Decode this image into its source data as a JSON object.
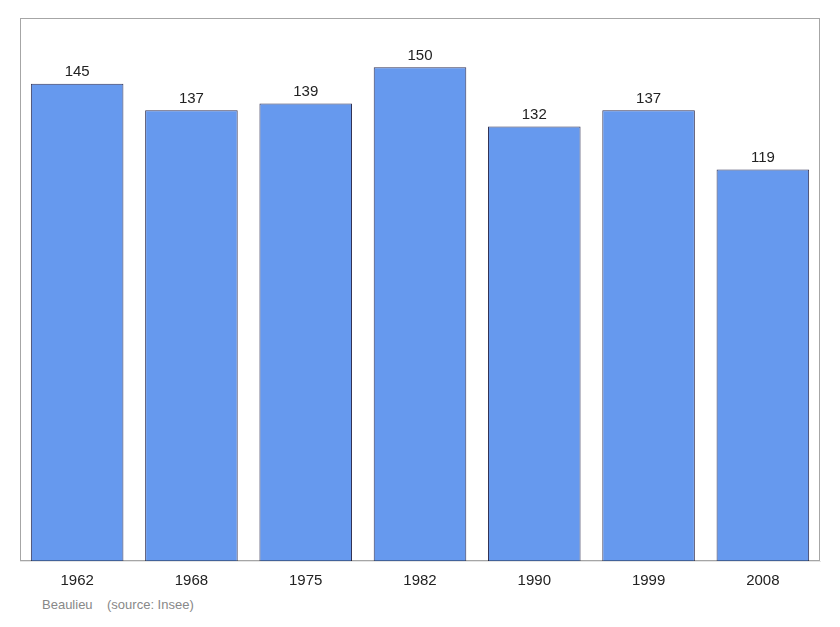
{
  "chart_data": {
    "type": "bar",
    "categories": [
      "1962",
      "1968",
      "1975",
      "1982",
      "1990",
      "1999",
      "2008"
    ],
    "values": [
      145,
      137,
      139,
      150,
      132,
      137,
      119
    ],
    "color": "#6699EE",
    "ylim": [
      0,
      165
    ],
    "grid": false,
    "data_labels": true,
    "tick_labels": "x",
    "annotations": [
      "Beaulieu    (source: Insee)"
    ]
  }
}
